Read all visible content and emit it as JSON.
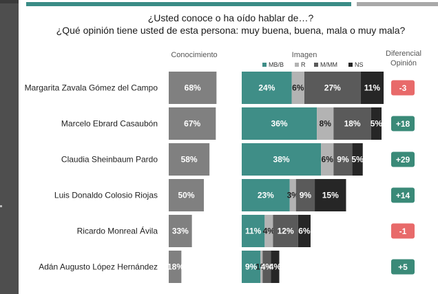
{
  "title_line1": "¿Usted conoce o ha oído hablar de…?",
  "title_line2": "¿Qué opinión tiene usted de esta persona: muy buena, buena, mala o muy mala?",
  "headers": {
    "conocimiento": "Conocimiento",
    "imagen": "Imagen",
    "diferencial_l1": "Diferencial",
    "diferencial_l2": "Opinión"
  },
  "legend": [
    "MB/B",
    "R",
    "M/MM",
    "NS"
  ],
  "colors": {
    "conocimiento": "#808080",
    "MB/B": "#3f8e87",
    "R": "#b3b3b3",
    "M/MM": "#5a5a5a",
    "NS": "#262626",
    "positive": "#3a8a78",
    "negative": "#e86a6a",
    "accent_bar": "#3a8c86"
  },
  "chart_data": {
    "type": "bar",
    "categories": [
      "Margarita Zavala Gómez del Campo",
      "Marcelo Ebrard Casaubón",
      "Claudia Sheinbaum Pardo",
      "Luis Donaldo Colosio Riojas",
      "Ricardo Monreal Ávila",
      "Adán Augusto López Hernández"
    ],
    "conocimiento": [
      68,
      67,
      58,
      50,
      33,
      18
    ],
    "series": [
      {
        "name": "MB/B",
        "values": [
          24,
          36,
          38,
          23,
          11,
          9
        ]
      },
      {
        "name": "R",
        "values": [
          6,
          8,
          6,
          3,
          4,
          1
        ]
      },
      {
        "name": "M/MM",
        "values": [
          27,
          18,
          9,
          9,
          12,
          4
        ]
      },
      {
        "name": "NS",
        "values": [
          11,
          5,
          5,
          15,
          6,
          4
        ]
      }
    ],
    "diferencial": [
      "-3",
      "+18",
      "+29",
      "+14",
      "-1",
      "+5"
    ]
  }
}
